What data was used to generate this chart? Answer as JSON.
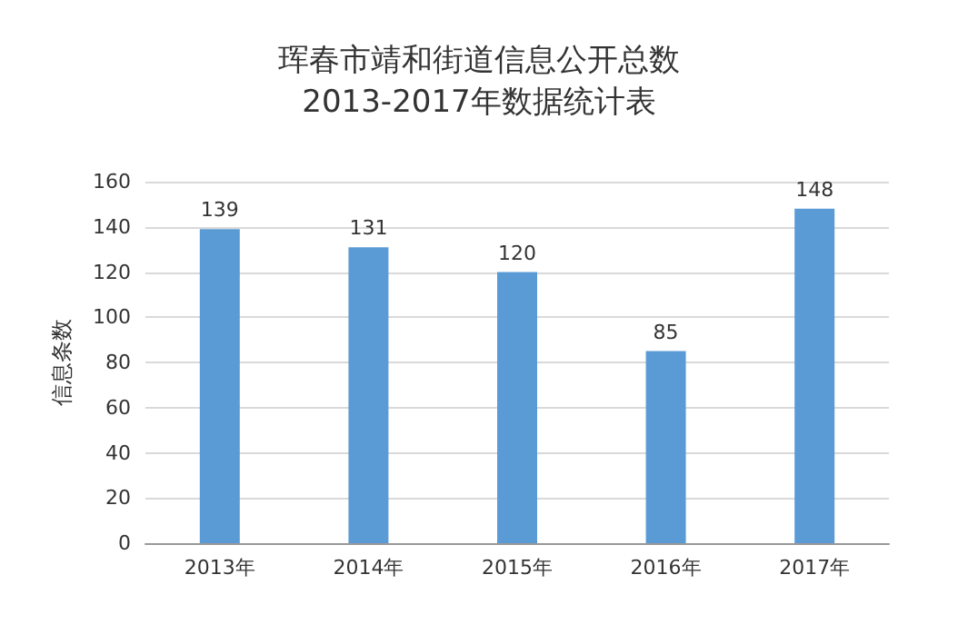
{
  "chart_data": {
    "type": "bar",
    "title": "珲春市靖和街道信息公开总数",
    "subtitle": "2013-2017年数据统计表",
    "ylabel": "信息条数",
    "categories": [
      "2013年",
      "2014年",
      "2015年",
      "2016年",
      "2017年"
    ],
    "values": [
      139,
      131,
      120,
      85,
      148
    ],
    "color": "#5b9bd5",
    "ylim": [
      0,
      160
    ],
    "yticks": [
      0,
      20,
      40,
      60,
      80,
      100,
      120,
      140,
      160
    ],
    "grid": "y",
    "data_labels": true
  }
}
